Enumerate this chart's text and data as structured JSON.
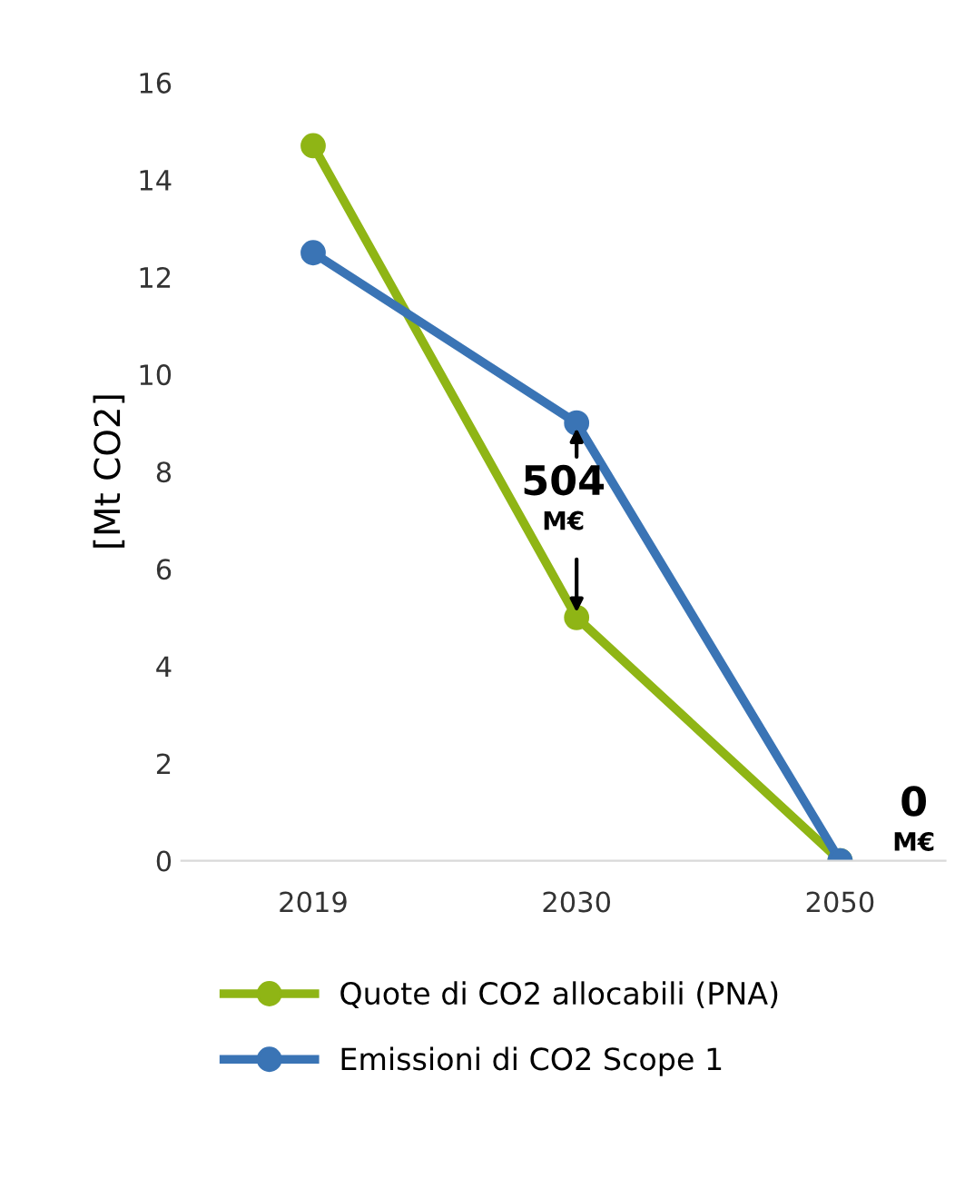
{
  "chart_data": {
    "type": "line",
    "ylabel": "[Mt CO2]",
    "categories": [
      "2019",
      "2030",
      "2050"
    ],
    "series": [
      {
        "name": "Quote di CO2 allocabili (PNA)",
        "color": "#8fb515",
        "values": [
          14.7,
          5.0,
          0
        ]
      },
      {
        "name": "Emissioni di CO2 Scope 1",
        "color": "#3a74b5",
        "values": [
          12.5,
          9.0,
          0
        ]
      }
    ],
    "ylim": [
      0,
      16
    ],
    "yticks": [
      0,
      2,
      4,
      6,
      8,
      10,
      12,
      14,
      16
    ],
    "annotations": [
      {
        "text": "504 M€",
        "x": "2030",
        "y": 5.0
      },
      "0 M€"
    ],
    "grid": false,
    "legend": "bottom",
    "marker": "circle",
    "line_style": "solid"
  }
}
